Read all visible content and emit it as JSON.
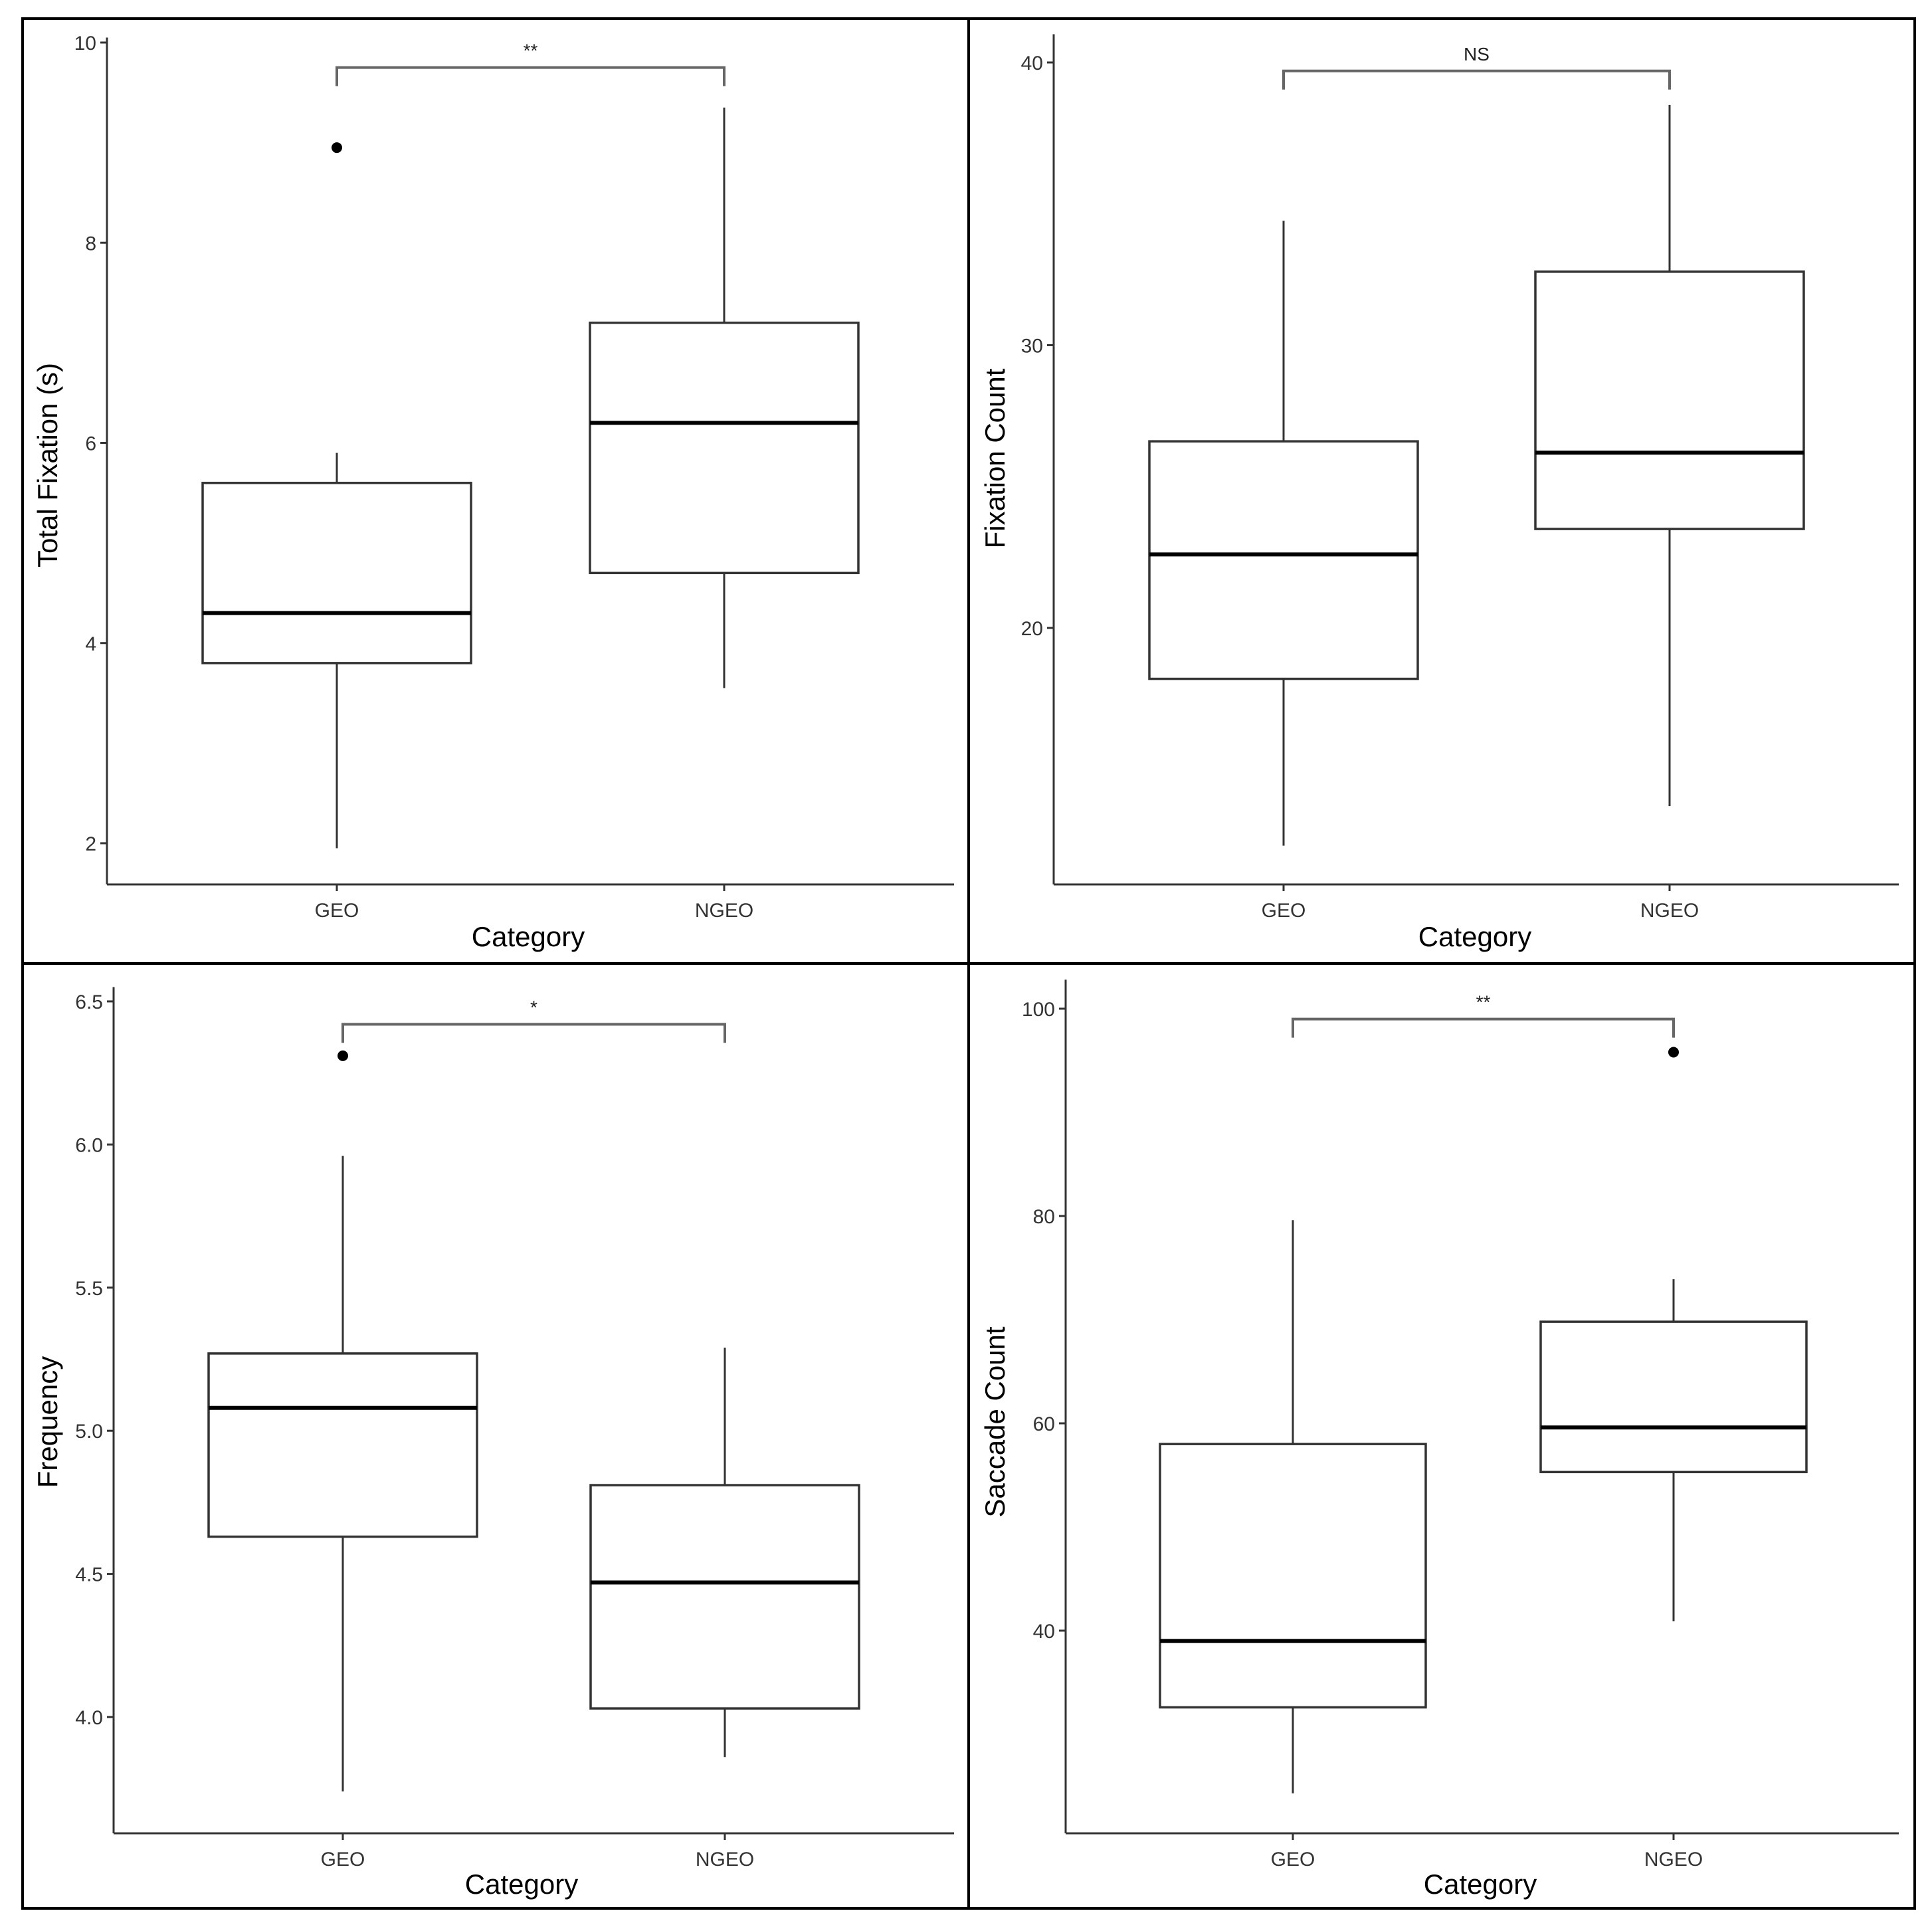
{
  "chart_data": [
    {
      "type": "box",
      "ylabel": "Total Fixation (s)",
      "xlabel": "Category",
      "categories": [
        "GEO",
        "NGEO"
      ],
      "ylim": [
        1.6,
        10.05
      ],
      "yticks": [
        2,
        4,
        6,
        8,
        10
      ],
      "ytick_labels": [
        "2",
        "4",
        "6",
        "8",
        "10"
      ],
      "boxes": [
        {
          "name": "GEO",
          "min": 1.95,
          "q1": 3.8,
          "median": 4.3,
          "q3": 5.6,
          "max": 5.9,
          "outliers": [
            8.95
          ]
        },
        {
          "name": "NGEO",
          "min": 3.55,
          "q1": 4.7,
          "median": 6.2,
          "q3": 7.2,
          "max": 9.35,
          "outliers": []
        }
      ],
      "significance": "**",
      "bracket_y": 9.75
    },
    {
      "type": "box",
      "ylabel": "Fixation Count",
      "xlabel": "Category",
      "categories": [
        "GEO",
        "NGEO"
      ],
      "ylim": [
        10.9,
        41.0
      ],
      "yticks": [
        20,
        30,
        40
      ],
      "ytick_labels": [
        "20",
        "30",
        "40"
      ],
      "boxes": [
        {
          "name": "GEO",
          "min": 12.3,
          "q1": 18.2,
          "median": 22.6,
          "q3": 26.6,
          "max": 34.4,
          "outliers": []
        },
        {
          "name": "NGEO",
          "min": 13.7,
          "q1": 23.5,
          "median": 26.2,
          "q3": 32.6,
          "max": 38.5,
          "outliers": []
        }
      ],
      "significance": "NS",
      "bracket_y": 39.7
    },
    {
      "type": "box",
      "ylabel": "Frequency",
      "xlabel": "Category",
      "categories": [
        "GEO",
        "NGEO"
      ],
      "ylim": [
        3.6,
        6.55
      ],
      "yticks": [
        4.0,
        4.5,
        5.0,
        5.5,
        6.0,
        6.5
      ],
      "ytick_labels": [
        "4.0",
        "4.5",
        "5.0",
        "5.5",
        "6.0",
        "6.5"
      ],
      "boxes": [
        {
          "name": "GEO",
          "min": 3.74,
          "q1": 4.63,
          "median": 5.08,
          "q3": 5.27,
          "max": 5.96,
          "outliers": [
            6.31
          ]
        },
        {
          "name": "NGEO",
          "min": 3.86,
          "q1": 4.03,
          "median": 4.47,
          "q3": 4.81,
          "max": 5.29,
          "outliers": []
        }
      ],
      "significance": "*",
      "bracket_y": 6.42
    },
    {
      "type": "box",
      "ylabel": "Saccade Count",
      "xlabel": "Category",
      "categories": [
        "GEO",
        "NGEO"
      ],
      "ylim": [
        20.5,
        102.8
      ],
      "yticks": [
        40,
        60,
        80,
        100
      ],
      "ytick_labels": [
        "40",
        "60",
        "80",
        "100"
      ],
      "boxes": [
        {
          "name": "GEO",
          "min": 24.3,
          "q1": 32.6,
          "median": 39.0,
          "q3": 58.0,
          "max": 79.6,
          "outliers": []
        },
        {
          "name": "NGEO",
          "min": 40.9,
          "q1": 55.3,
          "median": 59.6,
          "q3": 69.8,
          "max": 73.9,
          "outliers": [
            95.8
          ]
        }
      ],
      "significance": "**",
      "bracket_y": 99.0
    }
  ]
}
